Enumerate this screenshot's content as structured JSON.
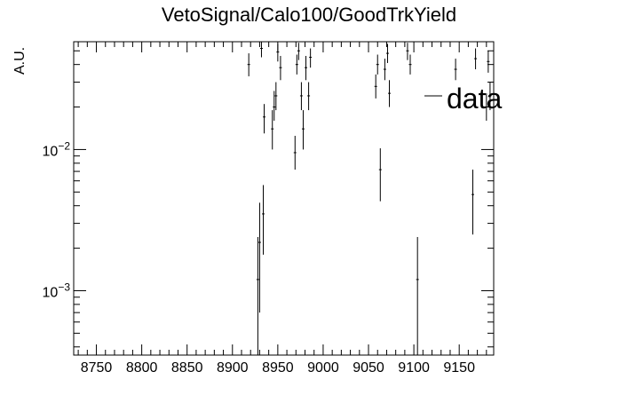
{
  "chart_data": {
    "type": "scatter",
    "title": "VetoSignal/Calo100/GoodTrkYield",
    "xlabel": "",
    "ylabel": "A.U.",
    "log_y": true,
    "xlim": [
      8725,
      9188
    ],
    "ylim": [
      0.00035,
      0.058
    ],
    "x_ticks": [
      8750,
      8800,
      8850,
      8900,
      8950,
      9000,
      9050,
      9100,
      9150
    ],
    "x_tick_labels": [
      "8750",
      "8800",
      "8850",
      "8900",
      "8950",
      "9000",
      "9050",
      "9100",
      "9150"
    ],
    "y_ticks": [
      0.01,
      0.001
    ],
    "y_tick_labels": [
      {
        "base": "10",
        "exp": "−2"
      },
      {
        "base": "10",
        "exp": "−3"
      }
    ],
    "grid": false,
    "legend": {
      "position": "top-right",
      "entries": [
        {
          "label": "data"
        }
      ]
    },
    "series": [
      {
        "name": "data",
        "color": "#000000",
        "points": [
          {
            "x": 8918,
            "y": 0.04,
            "lo": 0.033,
            "hi": 0.048
          },
          {
            "x": 8928,
            "y": 0.0012,
            "lo": 0.00035,
            "hi": 0.0024
          },
          {
            "x": 8930,
            "y": 0.0022,
            "lo": 0.0007,
            "hi": 0.0042
          },
          {
            "x": 8932,
            "y": 0.052,
            "lo": 0.045,
            "hi": 0.058
          },
          {
            "x": 8934,
            "y": 0.0035,
            "lo": 0.0018,
            "hi": 0.0056
          },
          {
            "x": 8935,
            "y": 0.017,
            "lo": 0.013,
            "hi": 0.021
          },
          {
            "x": 8944,
            "y": 0.014,
            "lo": 0.01,
            "hi": 0.019
          },
          {
            "x": 8946,
            "y": 0.02,
            "lo": 0.016,
            "hi": 0.026
          },
          {
            "x": 8948,
            "y": 0.024,
            "lo": 0.019,
            "hi": 0.03
          },
          {
            "x": 8950,
            "y": 0.049,
            "lo": 0.042,
            "hi": 0.056
          },
          {
            "x": 8953,
            "y": 0.038,
            "lo": 0.031,
            "hi": 0.046
          },
          {
            "x": 8969,
            "y": 0.0095,
            "lo": 0.0072,
            "hi": 0.0125
          },
          {
            "x": 8971,
            "y": 0.04,
            "lo": 0.034,
            "hi": 0.047
          },
          {
            "x": 8973,
            "y": 0.05,
            "lo": 0.043,
            "hi": 0.057
          },
          {
            "x": 8976,
            "y": 0.024,
            "lo": 0.019,
            "hi": 0.03
          },
          {
            "x": 8978,
            "y": 0.014,
            "lo": 0.01,
            "hi": 0.019
          },
          {
            "x": 8981,
            "y": 0.038,
            "lo": 0.031,
            "hi": 0.046
          },
          {
            "x": 8984,
            "y": 0.024,
            "lo": 0.019,
            "hi": 0.03
          },
          {
            "x": 8986,
            "y": 0.045,
            "lo": 0.038,
            "hi": 0.052
          },
          {
            "x": 9058,
            "y": 0.028,
            "lo": 0.023,
            "hi": 0.034
          },
          {
            "x": 9060,
            "y": 0.04,
            "lo": 0.034,
            "hi": 0.047
          },
          {
            "x": 9063,
            "y": 0.0072,
            "lo": 0.0043,
            "hi": 0.0102
          },
          {
            "x": 9068,
            "y": 0.037,
            "lo": 0.031,
            "hi": 0.044
          },
          {
            "x": 9071,
            "y": 0.048,
            "lo": 0.041,
            "hi": 0.056
          },
          {
            "x": 9073,
            "y": 0.025,
            "lo": 0.02,
            "hi": 0.031
          },
          {
            "x": 9093,
            "y": 0.05,
            "lo": 0.043,
            "hi": 0.057
          },
          {
            "x": 9096,
            "y": 0.04,
            "lo": 0.034,
            "hi": 0.047
          },
          {
            "x": 9104,
            "y": 0.0012,
            "lo": 0.00035,
            "hi": 0.0024
          },
          {
            "x": 9146,
            "y": 0.037,
            "lo": 0.031,
            "hi": 0.044
          },
          {
            "x": 9165,
            "y": 0.0048,
            "lo": 0.0025,
            "hi": 0.0072
          },
          {
            "x": 9168,
            "y": 0.044,
            "lo": 0.037,
            "hi": 0.052
          },
          {
            "x": 9180,
            "y": 0.02,
            "lo": 0.016,
            "hi": 0.025
          },
          {
            "x": 9182,
            "y": 0.042,
            "lo": 0.035,
            "hi": 0.05
          },
          {
            "x": 9184,
            "y": 0.024,
            "lo": 0.019,
            "hi": 0.03
          }
        ]
      }
    ]
  }
}
